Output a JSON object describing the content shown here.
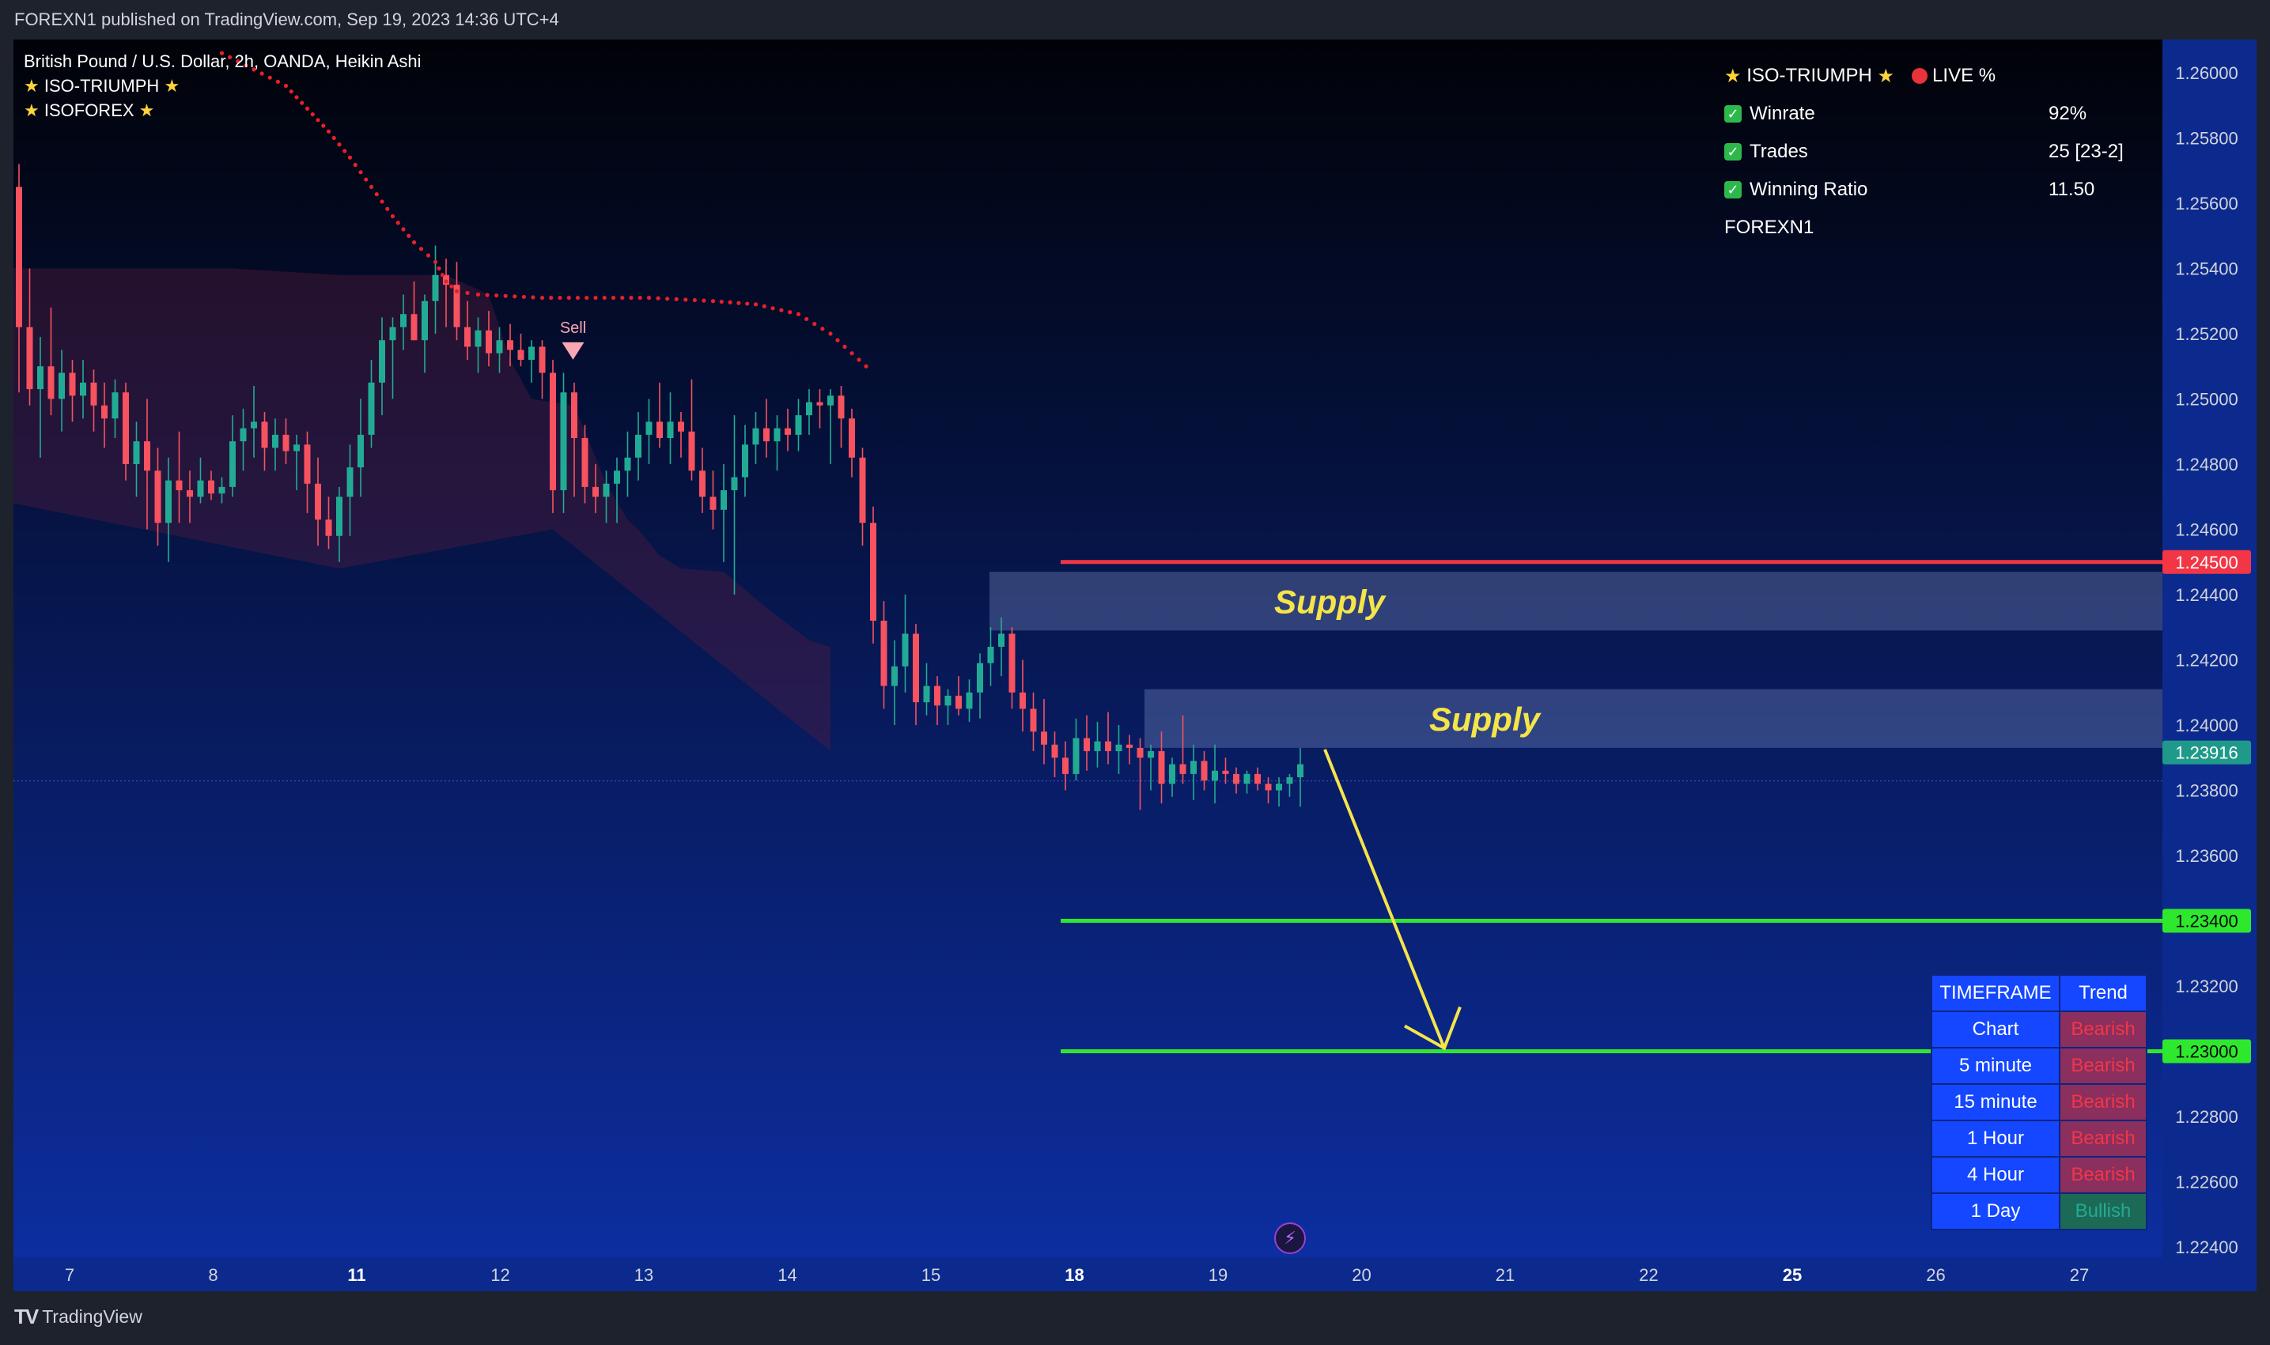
{
  "header": {
    "publish_line": "FOREXN1 published on TradingView.com, Sep 19, 2023 14:36 UTC+4"
  },
  "footer": {
    "logo_text": "TradingView"
  },
  "legend": {
    "symbol_line": "British Pound / U.S. Dollar, 2h, OANDA, Heikin Ashi",
    "indicator1": "ISO-TRIUMPH",
    "indicator2": "ISOFOREX"
  },
  "stats_panel": {
    "title": "ISO-TRIUMPH",
    "live_label": "LIVE %",
    "rows": [
      {
        "label": "Winrate",
        "value": "92%"
      },
      {
        "label": "Trades",
        "value": "25 [23-2]"
      },
      {
        "label": "Winning Ratio",
        "value": "11.50"
      }
    ],
    "author": "FOREXN1"
  },
  "timeframe_table": {
    "headers": [
      "TIMEFRAME",
      "Trend"
    ],
    "rows": [
      {
        "tf": "Chart",
        "trend": "Bearish"
      },
      {
        "tf": "5 minute",
        "trend": "Bearish"
      },
      {
        "tf": "15 minute",
        "trend": "Bearish"
      },
      {
        "tf": "1 Hour",
        "trend": "Bearish"
      },
      {
        "tf": "4 Hour",
        "trend": "Bearish"
      },
      {
        "tf": "1 Day",
        "trend": "Bullish"
      }
    ]
  },
  "colors": {
    "bg_top": "#010208",
    "bg_bottom": "#0d2fa4",
    "bull": "#22ab94",
    "bear": "#f7525f",
    "resistance": "#f23645",
    "target": "#2ee82e",
    "dots": "#e8202a",
    "arrow": "#f5e44a",
    "supply_text": "#f5e44a"
  },
  "chart_data": {
    "type": "candlestick",
    "symbol": "British Pound / U.S. Dollar",
    "interval": "2h",
    "style": "Heikin Ashi",
    "price_axis": {
      "range": [
        1.2224,
        1.2606
      ],
      "ticks": [
        "1.26000",
        "1.25800",
        "1.25600",
        "1.25400",
        "1.25200",
        "1.25000",
        "1.24800",
        "1.24600",
        "1.24400",
        "1.24200",
        "1.24000",
        "1.23800",
        "1.23600",
        "1.23200",
        "1.22800",
        "1.22600",
        "1.22400"
      ]
    },
    "time_axis": {
      "ticks": [
        {
          "label": "7",
          "bold": false
        },
        {
          "label": "8",
          "bold": false
        },
        {
          "label": "11",
          "bold": true
        },
        {
          "label": "12",
          "bold": false
        },
        {
          "label": "13",
          "bold": false
        },
        {
          "label": "14",
          "bold": false
        },
        {
          "label": "15",
          "bold": false
        },
        {
          "label": "18",
          "bold": true
        },
        {
          "label": "19",
          "bold": false
        },
        {
          "label": "20",
          "bold": false
        },
        {
          "label": "21",
          "bold": false
        },
        {
          "label": "22",
          "bold": false
        },
        {
          "label": "25",
          "bold": true
        },
        {
          "label": "26",
          "bold": false
        },
        {
          "label": "27",
          "bold": false
        }
      ]
    },
    "current_price": {
      "value": 1.23916,
      "label": "1.23916"
    },
    "levels": [
      {
        "name": "resistance",
        "value": 1.245,
        "label": "1.24500"
      },
      {
        "name": "target-1",
        "value": 1.234,
        "label": "1.23400"
      },
      {
        "name": "target-2",
        "value": 1.23,
        "label": "1.23000"
      }
    ],
    "zones": [
      {
        "label": "Supply",
        "low": 1.2429,
        "high": 1.2447
      },
      {
        "label": "Supply",
        "low": 1.2393,
        "high": 1.2411
      }
    ],
    "signal": {
      "label": "Sell",
      "price": 1.2513
    },
    "candles": [
      {
        "o": 1.2565,
        "h": 1.2572,
        "l": 1.2502,
        "c": 1.2522
      },
      {
        "o": 1.2522,
        "h": 1.254,
        "l": 1.2498,
        "c": 1.2503
      },
      {
        "o": 1.2503,
        "h": 1.2519,
        "l": 1.2482,
        "c": 1.251
      },
      {
        "o": 1.251,
        "h": 1.2528,
        "l": 1.2495,
        "c": 1.25
      },
      {
        "o": 1.25,
        "h": 1.2515,
        "l": 1.249,
        "c": 1.2508
      },
      {
        "o": 1.2508,
        "h": 1.2512,
        "l": 1.2493,
        "c": 1.2501
      },
      {
        "o": 1.2501,
        "h": 1.2512,
        "l": 1.2494,
        "c": 1.2505
      },
      {
        "o": 1.2505,
        "h": 1.2509,
        "l": 1.249,
        "c": 1.2498
      },
      {
        "o": 1.2498,
        "h": 1.2505,
        "l": 1.2485,
        "c": 1.2494
      },
      {
        "o": 1.2494,
        "h": 1.2506,
        "l": 1.2488,
        "c": 1.2502
      },
      {
        "o": 1.2502,
        "h": 1.2505,
        "l": 1.2475,
        "c": 1.248
      },
      {
        "o": 1.248,
        "h": 1.2493,
        "l": 1.247,
        "c": 1.2487
      },
      {
        "o": 1.2487,
        "h": 1.25,
        "l": 1.246,
        "c": 1.2478
      },
      {
        "o": 1.2478,
        "h": 1.2485,
        "l": 1.2455,
        "c": 1.2462
      },
      {
        "o": 1.2462,
        "h": 1.2482,
        "l": 1.245,
        "c": 1.2475
      },
      {
        "o": 1.2475,
        "h": 1.249,
        "l": 1.2462,
        "c": 1.2472
      },
      {
        "o": 1.2472,
        "h": 1.2478,
        "l": 1.2462,
        "c": 1.247
      },
      {
        "o": 1.247,
        "h": 1.2482,
        "l": 1.2468,
        "c": 1.2475
      },
      {
        "o": 1.2475,
        "h": 1.2478,
        "l": 1.2469,
        "c": 1.2471
      },
      {
        "o": 1.2471,
        "h": 1.2476,
        "l": 1.2468,
        "c": 1.2473
      },
      {
        "o": 1.2473,
        "h": 1.2495,
        "l": 1.247,
        "c": 1.2487
      },
      {
        "o": 1.2487,
        "h": 1.2497,
        "l": 1.2478,
        "c": 1.2491
      },
      {
        "o": 1.2491,
        "h": 1.2504,
        "l": 1.2482,
        "c": 1.2493
      },
      {
        "o": 1.2493,
        "h": 1.2496,
        "l": 1.2478,
        "c": 1.2485
      },
      {
        "o": 1.2485,
        "h": 1.2494,
        "l": 1.2478,
        "c": 1.2489
      },
      {
        "o": 1.2489,
        "h": 1.2494,
        "l": 1.248,
        "c": 1.2484
      },
      {
        "o": 1.2484,
        "h": 1.2489,
        "l": 1.2472,
        "c": 1.2486
      },
      {
        "o": 1.2486,
        "h": 1.249,
        "l": 1.2465,
        "c": 1.2474
      },
      {
        "o": 1.2474,
        "h": 1.2482,
        "l": 1.2455,
        "c": 1.2463
      },
      {
        "o": 1.2463,
        "h": 1.247,
        "l": 1.2454,
        "c": 1.2458
      },
      {
        "o": 1.2458,
        "h": 1.2473,
        "l": 1.245,
        "c": 1.247
      },
      {
        "o": 1.247,
        "h": 1.2486,
        "l": 1.2458,
        "c": 1.2479
      },
      {
        "o": 1.2479,
        "h": 1.25,
        "l": 1.247,
        "c": 1.2489
      },
      {
        "o": 1.2489,
        "h": 1.2512,
        "l": 1.2485,
        "c": 1.2505
      },
      {
        "o": 1.2505,
        "h": 1.2525,
        "l": 1.2495,
        "c": 1.2518
      },
      {
        "o": 1.2518,
        "h": 1.2525,
        "l": 1.25,
        "c": 1.2522
      },
      {
        "o": 1.2522,
        "h": 1.2532,
        "l": 1.2515,
        "c": 1.2526
      },
      {
        "o": 1.2526,
        "h": 1.2536,
        "l": 1.2518,
        "c": 1.2518
      },
      {
        "o": 1.2518,
        "h": 1.2532,
        "l": 1.2508,
        "c": 1.253
      },
      {
        "o": 1.253,
        "h": 1.2547,
        "l": 1.252,
        "c": 1.2538
      },
      {
        "o": 1.2538,
        "h": 1.2543,
        "l": 1.2522,
        "c": 1.2535
      },
      {
        "o": 1.2535,
        "h": 1.2542,
        "l": 1.2518,
        "c": 1.2522
      },
      {
        "o": 1.2522,
        "h": 1.253,
        "l": 1.2512,
        "c": 1.2516
      },
      {
        "o": 1.2516,
        "h": 1.2525,
        "l": 1.2508,
        "c": 1.2521
      },
      {
        "o": 1.2521,
        "h": 1.2527,
        "l": 1.251,
        "c": 1.2514
      },
      {
        "o": 1.2514,
        "h": 1.2522,
        "l": 1.2508,
        "c": 1.2518
      },
      {
        "o": 1.2518,
        "h": 1.2523,
        "l": 1.251,
        "c": 1.2515
      },
      {
        "o": 1.2515,
        "h": 1.252,
        "l": 1.251,
        "c": 1.2512
      },
      {
        "o": 1.2512,
        "h": 1.2518,
        "l": 1.2505,
        "c": 1.2516
      },
      {
        "o": 1.2516,
        "h": 1.2518,
        "l": 1.25,
        "c": 1.2508
      },
      {
        "o": 1.2508,
        "h": 1.2512,
        "l": 1.2465,
        "c": 1.2472
      },
      {
        "o": 1.2472,
        "h": 1.2508,
        "l": 1.2465,
        "c": 1.2502
      },
      {
        "o": 1.2502,
        "h": 1.2505,
        "l": 1.247,
        "c": 1.2488
      },
      {
        "o": 1.2488,
        "h": 1.2492,
        "l": 1.2468,
        "c": 1.2473
      },
      {
        "o": 1.2473,
        "h": 1.248,
        "l": 1.2465,
        "c": 1.247
      },
      {
        "o": 1.247,
        "h": 1.2478,
        "l": 1.2462,
        "c": 1.2474
      },
      {
        "o": 1.2474,
        "h": 1.2482,
        "l": 1.2462,
        "c": 1.2478
      },
      {
        "o": 1.2478,
        "h": 1.249,
        "l": 1.247,
        "c": 1.2482
      },
      {
        "o": 1.2482,
        "h": 1.2496,
        "l": 1.2475,
        "c": 1.2489
      },
      {
        "o": 1.2489,
        "h": 1.25,
        "l": 1.248,
        "c": 1.2493
      },
      {
        "o": 1.2493,
        "h": 1.2505,
        "l": 1.2485,
        "c": 1.2488
      },
      {
        "o": 1.2488,
        "h": 1.2502,
        "l": 1.248,
        "c": 1.2493
      },
      {
        "o": 1.2493,
        "h": 1.2496,
        "l": 1.2482,
        "c": 1.249
      },
      {
        "o": 1.249,
        "h": 1.2506,
        "l": 1.2475,
        "c": 1.2478
      },
      {
        "o": 1.2478,
        "h": 1.2485,
        "l": 1.2465,
        "c": 1.247
      },
      {
        "o": 1.247,
        "h": 1.2478,
        "l": 1.246,
        "c": 1.2466
      },
      {
        "o": 1.2466,
        "h": 1.248,
        "l": 1.245,
        "c": 1.2472
      },
      {
        "o": 1.2472,
        "h": 1.2495,
        "l": 1.244,
        "c": 1.2476
      },
      {
        "o": 1.2476,
        "h": 1.2492,
        "l": 1.247,
        "c": 1.2486
      },
      {
        "o": 1.2486,
        "h": 1.2496,
        "l": 1.248,
        "c": 1.2491
      },
      {
        "o": 1.2491,
        "h": 1.25,
        "l": 1.2482,
        "c": 1.2487
      },
      {
        "o": 1.2487,
        "h": 1.2495,
        "l": 1.2478,
        "c": 1.2491
      },
      {
        "o": 1.2491,
        "h": 1.2497,
        "l": 1.2484,
        "c": 1.2489
      },
      {
        "o": 1.2489,
        "h": 1.25,
        "l": 1.2484,
        "c": 1.2495
      },
      {
        "o": 1.2495,
        "h": 1.2503,
        "l": 1.2489,
        "c": 1.2499
      },
      {
        "o": 1.2499,
        "h": 1.2503,
        "l": 1.2491,
        "c": 1.2498
      },
      {
        "o": 1.2498,
        "h": 1.2503,
        "l": 1.248,
        "c": 1.2501
      },
      {
        "o": 1.2501,
        "h": 1.2504,
        "l": 1.2485,
        "c": 1.2494
      },
      {
        "o": 1.2494,
        "h": 1.2497,
        "l": 1.2476,
        "c": 1.2482
      },
      {
        "o": 1.2482,
        "h": 1.2485,
        "l": 1.2455,
        "c": 1.2462
      },
      {
        "o": 1.2462,
        "h": 1.2467,
        "l": 1.2425,
        "c": 1.2432
      },
      {
        "o": 1.2432,
        "h": 1.2438,
        "l": 1.2405,
        "c": 1.2412
      },
      {
        "o": 1.2412,
        "h": 1.2426,
        "l": 1.24,
        "c": 1.2418
      },
      {
        "o": 1.2418,
        "h": 1.244,
        "l": 1.241,
        "c": 1.2428
      },
      {
        "o": 1.2428,
        "h": 1.2431,
        "l": 1.24,
        "c": 1.2407
      },
      {
        "o": 1.2407,
        "h": 1.2419,
        "l": 1.2403,
        "c": 1.2412
      },
      {
        "o": 1.2412,
        "h": 1.2415,
        "l": 1.24,
        "c": 1.2406
      },
      {
        "o": 1.2406,
        "h": 1.2411,
        "l": 1.24,
        "c": 1.2409
      },
      {
        "o": 1.2409,
        "h": 1.2415,
        "l": 1.2403,
        "c": 1.2405
      },
      {
        "o": 1.2405,
        "h": 1.2414,
        "l": 1.2401,
        "c": 1.241
      },
      {
        "o": 1.241,
        "h": 1.2422,
        "l": 1.2402,
        "c": 1.2419
      },
      {
        "o": 1.2419,
        "h": 1.243,
        "l": 1.2412,
        "c": 1.2424
      },
      {
        "o": 1.2424,
        "h": 1.2433,
        "l": 1.2415,
        "c": 1.2428
      },
      {
        "o": 1.2428,
        "h": 1.243,
        "l": 1.2405,
        "c": 1.241
      },
      {
        "o": 1.241,
        "h": 1.242,
        "l": 1.2398,
        "c": 1.2405
      },
      {
        "o": 1.2405,
        "h": 1.241,
        "l": 1.2392,
        "c": 1.2398
      },
      {
        "o": 1.2398,
        "h": 1.2408,
        "l": 1.2388,
        "c": 1.2394
      },
      {
        "o": 1.2394,
        "h": 1.2398,
        "l": 1.2384,
        "c": 1.239
      },
      {
        "o": 1.239,
        "h": 1.2395,
        "l": 1.238,
        "c": 1.2385
      },
      {
        "o": 1.2385,
        "h": 1.2402,
        "l": 1.2383,
        "c": 1.2396
      },
      {
        "o": 1.2396,
        "h": 1.2403,
        "l": 1.2386,
        "c": 1.2392
      },
      {
        "o": 1.2392,
        "h": 1.2401,
        "l": 1.2387,
        "c": 1.2395
      },
      {
        "o": 1.2395,
        "h": 1.2404,
        "l": 1.2388,
        "c": 1.2392
      },
      {
        "o": 1.2392,
        "h": 1.24,
        "l": 1.2385,
        "c": 1.2394
      },
      {
        "o": 1.2394,
        "h": 1.2397,
        "l": 1.2388,
        "c": 1.2393
      },
      {
        "o": 1.2393,
        "h": 1.2396,
        "l": 1.2374,
        "c": 1.239
      },
      {
        "o": 1.239,
        "h": 1.2394,
        "l": 1.238,
        "c": 1.2392
      },
      {
        "o": 1.2392,
        "h": 1.2398,
        "l": 1.2376,
        "c": 1.2382
      },
      {
        "o": 1.2382,
        "h": 1.239,
        "l": 1.2378,
        "c": 1.2388
      },
      {
        "o": 1.2388,
        "h": 1.2403,
        "l": 1.2382,
        "c": 1.2385
      },
      {
        "o": 1.2385,
        "h": 1.2394,
        "l": 1.2377,
        "c": 1.2389
      },
      {
        "o": 1.2389,
        "h": 1.2392,
        "l": 1.238,
        "c": 1.2383
      },
      {
        "o": 1.2383,
        "h": 1.2394,
        "l": 1.2376,
        "c": 1.2386
      },
      {
        "o": 1.2386,
        "h": 1.239,
        "l": 1.2382,
        "c": 1.2385
      },
      {
        "o": 1.2385,
        "h": 1.2387,
        "l": 1.2379,
        "c": 1.2382
      },
      {
        "o": 1.2382,
        "h": 1.2386,
        "l": 1.2379,
        "c": 1.2385
      },
      {
        "o": 1.2385,
        "h": 1.2387,
        "l": 1.238,
        "c": 1.2382
      },
      {
        "o": 1.2382,
        "h": 1.2384,
        "l": 1.2376,
        "c": 1.238
      },
      {
        "o": 1.238,
        "h": 1.2384,
        "l": 1.2375,
        "c": 1.2382
      },
      {
        "o": 1.2382,
        "h": 1.2385,
        "l": 1.2378,
        "c": 1.2384
      },
      {
        "o": 1.2384,
        "h": 1.2393,
        "l": 1.2375,
        "c": 1.2388
      }
    ],
    "stop_dots": [
      [
        0,
        1.2606
      ],
      [
        6,
        1.2596
      ],
      [
        8,
        1.2589
      ],
      [
        10,
        1.2582
      ],
      [
        12,
        1.2574
      ],
      [
        14,
        1.2565
      ],
      [
        16,
        1.2556
      ],
      [
        18,
        1.2548
      ],
      [
        20,
        1.2542
      ],
      [
        21,
        1.2536
      ],
      [
        22,
        1.2533
      ],
      [
        24,
        1.2532
      ],
      [
        30,
        1.2531
      ],
      [
        40,
        1.2531
      ],
      [
        46,
        1.253
      ],
      [
        50,
        1.2529
      ],
      [
        54,
        1.2526
      ],
      [
        57,
        1.252
      ],
      [
        59,
        1.2514
      ],
      [
        61,
        1.2508
      ]
    ],
    "cloud_upper": [
      [
        -20,
        1.2574
      ],
      [
        -6,
        1.2574
      ],
      [
        -2,
        1.254
      ],
      [
        20,
        1.254
      ],
      [
        30,
        1.2538
      ],
      [
        40,
        1.2538
      ],
      [
        44,
        1.2532
      ],
      [
        46,
        1.2512
      ],
      [
        48,
        1.25
      ],
      [
        52,
        1.2498
      ],
      [
        55,
        1.2474
      ],
      [
        57,
        1.2463
      ],
      [
        58,
        1.246
      ],
      [
        60,
        1.2452
      ],
      [
        62,
        1.2448
      ],
      [
        66,
        1.2447
      ],
      [
        70,
        1.2436
      ],
      [
        74,
        1.2426
      ],
      [
        76,
        1.2424
      ]
    ]
  }
}
